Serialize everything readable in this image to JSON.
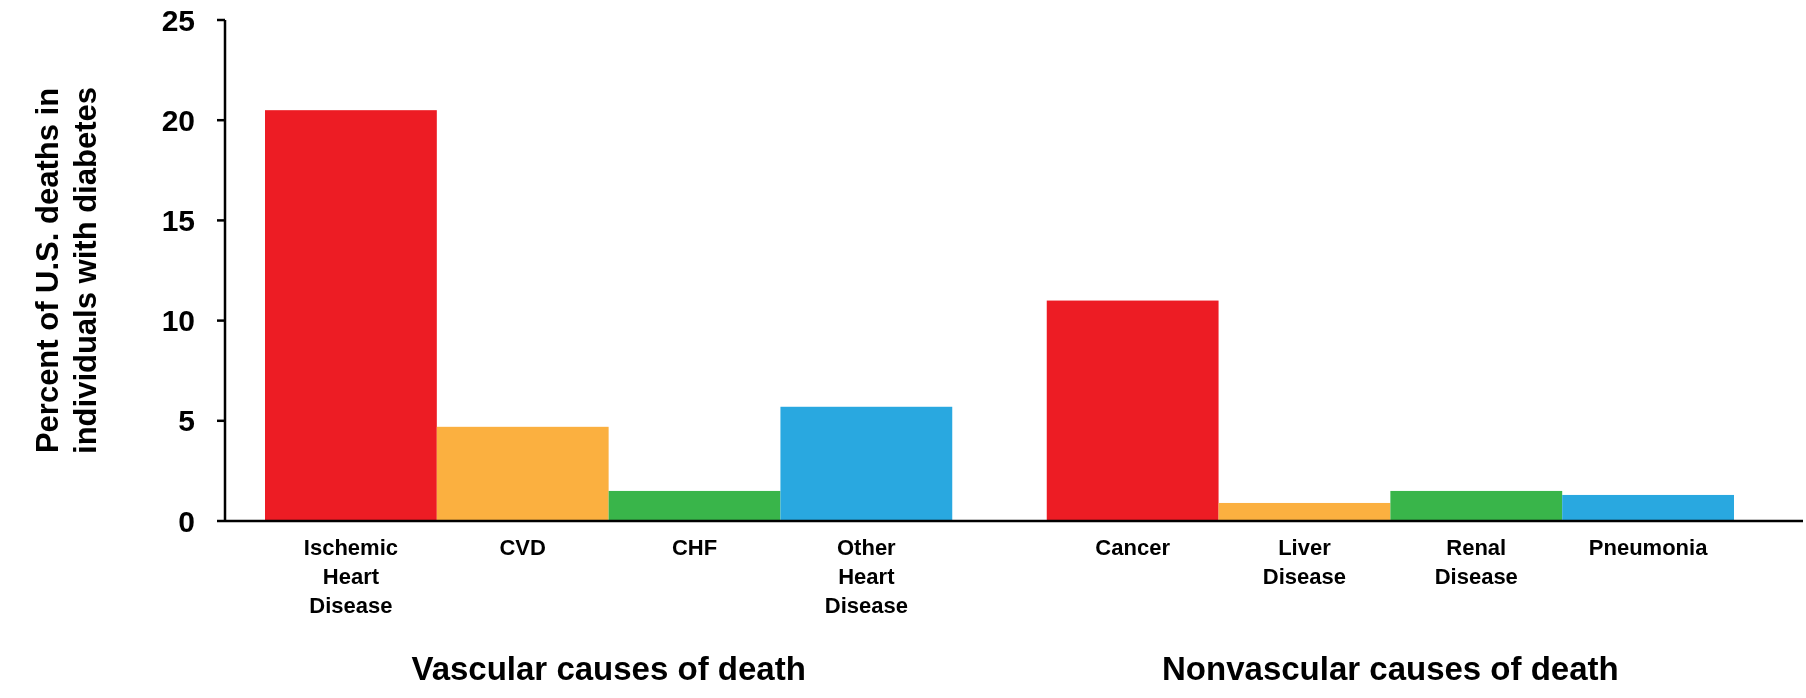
{
  "chart_data": {
    "type": "bar",
    "ylabel": "Percent of U.S. deaths in individuals with diabetes",
    "categories": [
      "Ischemic Heart Disease",
      "CVD",
      "CHF",
      "Other Heart Disease",
      null,
      "Cancer",
      "Liver Disease",
      "Renal Disease",
      "Pneumonia"
    ],
    "values": [
      20.5,
      4.7,
      1.5,
      5.7,
      null,
      11.0,
      0.9,
      1.5,
      1.3
    ],
    "colors": [
      "#ed1c24",
      "#fbb040",
      "#39b54a",
      "#29a8e0",
      null,
      "#ed1c24",
      "#fbb040",
      "#39b54a",
      "#29a8e0"
    ],
    "ylim": [
      0,
      25
    ],
    "yticks": [
      0,
      5,
      10,
      15,
      20,
      25
    ],
    "grid": false,
    "annotations": [
      "Vascular causes of death",
      "Nonvascular causes of death"
    ]
  }
}
